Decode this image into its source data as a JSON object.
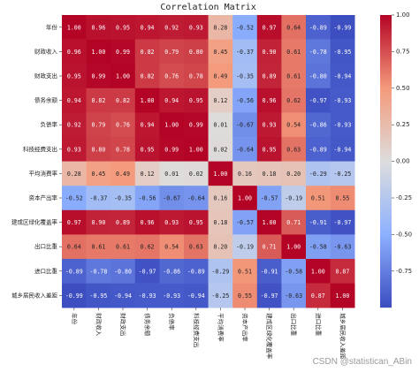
{
  "chart_data": {
    "type": "heatmap",
    "title": "Correlation Matrix",
    "labels": [
      "年份",
      "财政收入",
      "财政支出",
      "债务余额",
      "负债率",
      "科技经费支出",
      "平均消费率",
      "资本产出率",
      "建成区绿化覆盖率",
      "出口比重",
      "进口比重",
      "城乡居民收入差距"
    ],
    "values": [
      [
        1.0,
        0.96,
        0.95,
        0.94,
        0.92,
        0.93,
        0.28,
        -0.52,
        0.97,
        0.64,
        -0.89,
        -0.99
      ],
      [
        0.96,
        1.0,
        0.99,
        0.82,
        0.79,
        0.8,
        0.45,
        -0.37,
        0.9,
        0.61,
        -0.78,
        -0.95
      ],
      [
        0.95,
        0.99,
        1.0,
        0.82,
        0.76,
        0.78,
        0.49,
        -0.35,
        0.89,
        0.61,
        -0.8,
        -0.94
      ],
      [
        0.94,
        0.82,
        0.82,
        1.0,
        0.94,
        0.95,
        0.12,
        -0.56,
        0.96,
        0.62,
        -0.97,
        -0.93
      ],
      [
        0.92,
        0.79,
        0.76,
        0.94,
        1.0,
        0.99,
        0.01,
        -0.67,
        0.93,
        0.54,
        -0.86,
        -0.93
      ],
      [
        0.93,
        0.8,
        0.78,
        0.95,
        0.99,
        1.0,
        0.02,
        -0.64,
        0.95,
        0.63,
        -0.89,
        -0.94
      ],
      [
        0.28,
        0.45,
        0.49,
        0.12,
        0.01,
        0.02,
        1.0,
        0.16,
        0.18,
        0.2,
        -0.29,
        -0.25
      ],
      [
        -0.52,
        -0.37,
        -0.35,
        -0.56,
        -0.67,
        -0.64,
        0.16,
        1.0,
        -0.57,
        -0.19,
        0.51,
        0.55
      ],
      [
        0.97,
        0.9,
        0.89,
        0.96,
        0.93,
        0.95,
        0.18,
        -0.57,
        1.0,
        0.71,
        -0.91,
        -0.97
      ],
      [
        0.64,
        0.61,
        0.61,
        0.62,
        0.54,
        0.63,
        0.2,
        -0.19,
        0.71,
        1.0,
        -0.58,
        -0.63
      ],
      [
        -0.89,
        -0.78,
        -0.8,
        -0.97,
        -0.86,
        -0.89,
        -0.29,
        0.51,
        -0.91,
        -0.58,
        1.0,
        0.87
      ],
      [
        -0.99,
        -0.95,
        -0.94,
        -0.93,
        -0.93,
        -0.94,
        -0.25,
        0.55,
        -0.97,
        -0.63,
        0.87,
        1.0
      ]
    ],
    "vmin": -1.0,
    "vmax": 1.0,
    "colormap": "coolwarm",
    "colorbar_ticks": [
      "1.00",
      "0.75",
      "0.50",
      "0.25",
      "0.00",
      "-0.25",
      "-0.50",
      "-0.75"
    ],
    "colorbar_tick_values": [
      1.0,
      0.75,
      0.5,
      0.25,
      0.0,
      -0.25,
      -0.5,
      -0.75
    ]
  },
  "watermark": "CSDN @statistican_ABin"
}
